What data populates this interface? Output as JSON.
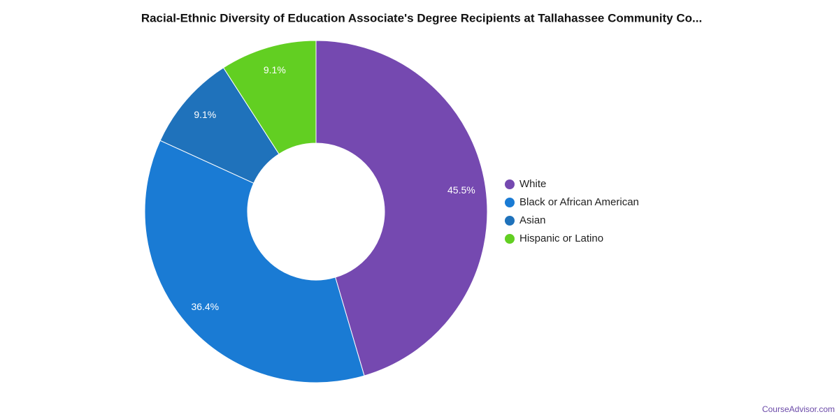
{
  "chart_data": {
    "type": "pie",
    "title": "Racial-Ethnic Diversity of Education Associate's Degree Recipients at Tallahassee Community Co...",
    "categories": [
      "White",
      "Black or African American",
      "Asian",
      "Hispanic or Latino"
    ],
    "values": [
      45.5,
      36.4,
      9.1,
      9.1
    ],
    "value_labels": [
      "45.5%",
      "36.4%",
      "9.1%",
      "9.1%"
    ],
    "colors": [
      "#7549b0",
      "#1a7bd4",
      "#1f72bb",
      "#62cf22"
    ],
    "legend": "right",
    "source": "CourseAdvisor.com"
  }
}
